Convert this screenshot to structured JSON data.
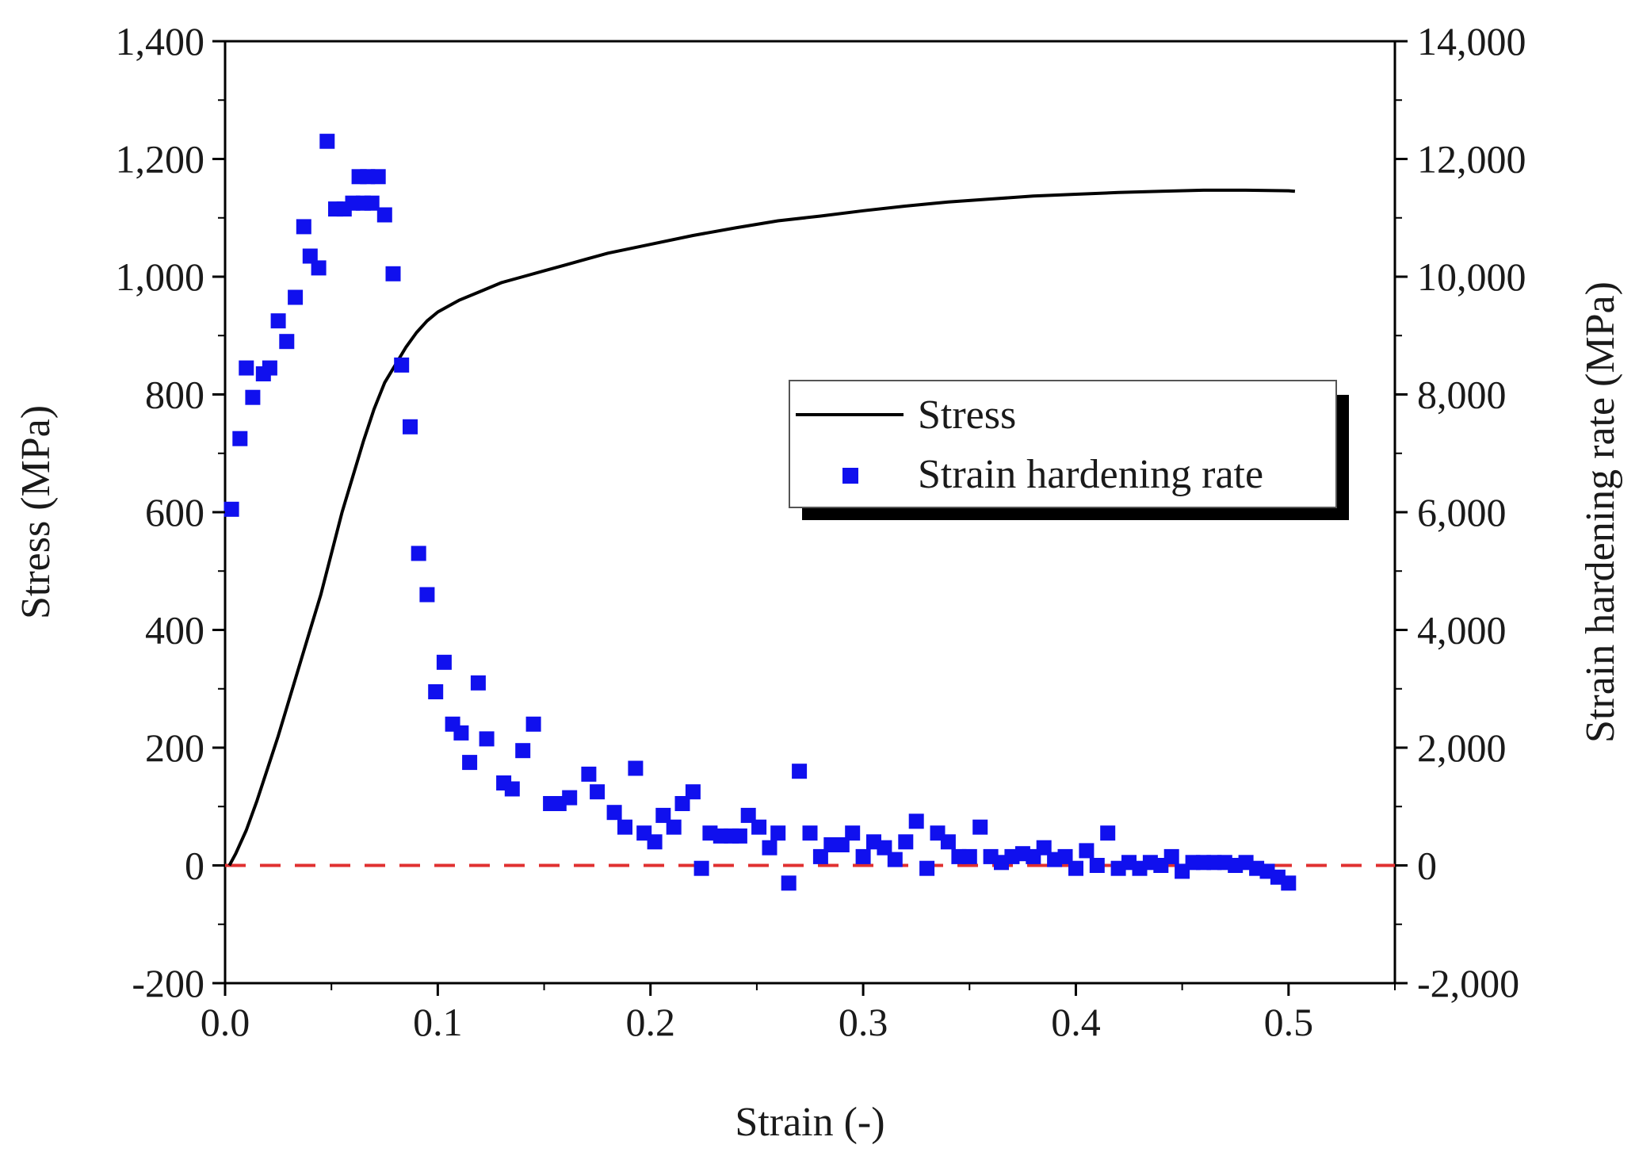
{
  "chart_data": {
    "type": "line",
    "title": "",
    "xlabel": "Strain (-)",
    "ylabel": "Stress (MPa)",
    "y2label": "Strain hardening rate (MPa)",
    "xlim": [
      0,
      0.55
    ],
    "ylim": [
      -200,
      1400
    ],
    "y2lim": [
      -2000,
      14000
    ],
    "grid": false,
    "legend_position": "center-right",
    "x_ticks": [
      "0.0",
      "0.1",
      "0.2",
      "0.3",
      "0.4",
      "0.5"
    ],
    "x_tick_values": [
      0,
      0.1,
      0.2,
      0.3,
      0.4,
      0.5
    ],
    "y_ticks": [
      "-200",
      "0",
      "200",
      "400",
      "600",
      "800",
      "1,000",
      "1,200",
      "1,400"
    ],
    "y_tick_values": [
      -200,
      0,
      200,
      400,
      600,
      800,
      1000,
      1200,
      1400
    ],
    "y2_ticks": [
      "-2,000",
      "0",
      "2,000",
      "4,000",
      "6,000",
      "8,000",
      "10,000",
      "12,000",
      "14,000"
    ],
    "y2_tick_values": [
      -2000,
      0,
      2000,
      4000,
      6000,
      8000,
      10000,
      12000,
      14000
    ],
    "reference_line": {
      "axis": "y",
      "value": 0,
      "style": "dashed",
      "color": "#e03030"
    },
    "series": [
      {
        "name": "Stress",
        "kind": "line",
        "axis": "left",
        "color": "#000000",
        "points": [
          [
            0.002,
            0
          ],
          [
            0.005,
            20
          ],
          [
            0.01,
            60
          ],
          [
            0.015,
            110
          ],
          [
            0.02,
            165
          ],
          [
            0.025,
            220
          ],
          [
            0.03,
            280
          ],
          [
            0.035,
            340
          ],
          [
            0.04,
            400
          ],
          [
            0.045,
            460
          ],
          [
            0.05,
            530
          ],
          [
            0.055,
            600
          ],
          [
            0.06,
            660
          ],
          [
            0.065,
            720
          ],
          [
            0.07,
            775
          ],
          [
            0.075,
            820
          ],
          [
            0.08,
            850
          ],
          [
            0.085,
            880
          ],
          [
            0.09,
            905
          ],
          [
            0.095,
            925
          ],
          [
            0.1,
            940
          ],
          [
            0.11,
            960
          ],
          [
            0.12,
            975
          ],
          [
            0.13,
            990
          ],
          [
            0.14,
            1000
          ],
          [
            0.15,
            1010
          ],
          [
            0.16,
            1020
          ],
          [
            0.17,
            1030
          ],
          [
            0.18,
            1040
          ],
          [
            0.2,
            1055
          ],
          [
            0.22,
            1070
          ],
          [
            0.24,
            1083
          ],
          [
            0.26,
            1095
          ],
          [
            0.28,
            1103
          ],
          [
            0.3,
            1112
          ],
          [
            0.32,
            1120
          ],
          [
            0.34,
            1127
          ],
          [
            0.36,
            1132
          ],
          [
            0.38,
            1137
          ],
          [
            0.4,
            1140
          ],
          [
            0.42,
            1143
          ],
          [
            0.44,
            1145
          ],
          [
            0.46,
            1147
          ],
          [
            0.48,
            1147
          ],
          [
            0.5,
            1146
          ],
          [
            0.503,
            1145
          ]
        ]
      },
      {
        "name": "Strain hardening rate",
        "kind": "scatter",
        "axis": "right",
        "color": "#1010ee",
        "points": [
          [
            0.003,
            6050
          ],
          [
            0.007,
            7250
          ],
          [
            0.01,
            8450
          ],
          [
            0.013,
            7950
          ],
          [
            0.018,
            8350
          ],
          [
            0.021,
            8450
          ],
          [
            0.025,
            9250
          ],
          [
            0.029,
            8900
          ],
          [
            0.033,
            9650
          ],
          [
            0.037,
            10850
          ],
          [
            0.04,
            10350
          ],
          [
            0.044,
            10150
          ],
          [
            0.048,
            12300
          ],
          [
            0.052,
            11150
          ],
          [
            0.056,
            11150
          ],
          [
            0.06,
            11250
          ],
          [
            0.063,
            11700
          ],
          [
            0.065,
            11250
          ],
          [
            0.067,
            11700
          ],
          [
            0.069,
            11250
          ],
          [
            0.072,
            11700
          ],
          [
            0.075,
            11050
          ],
          [
            0.079,
            10050
          ],
          [
            0.083,
            8500
          ],
          [
            0.087,
            7450
          ],
          [
            0.091,
            5300
          ],
          [
            0.095,
            4600
          ],
          [
            0.099,
            2950
          ],
          [
            0.103,
            3450
          ],
          [
            0.107,
            2400
          ],
          [
            0.111,
            2250
          ],
          [
            0.115,
            1750
          ],
          [
            0.119,
            3100
          ],
          [
            0.123,
            2150
          ],
          [
            0.131,
            1400
          ],
          [
            0.135,
            1300
          ],
          [
            0.14,
            1950
          ],
          [
            0.145,
            2400
          ],
          [
            0.153,
            1050
          ],
          [
            0.157,
            1050
          ],
          [
            0.162,
            1150
          ],
          [
            0.171,
            1550
          ],
          [
            0.175,
            1250
          ],
          [
            0.183,
            900
          ],
          [
            0.188,
            650
          ],
          [
            0.193,
            1650
          ],
          [
            0.197,
            550
          ],
          [
            0.202,
            400
          ],
          [
            0.206,
            850
          ],
          [
            0.211,
            650
          ],
          [
            0.215,
            1050
          ],
          [
            0.22,
            1250
          ],
          [
            0.224,
            -50
          ],
          [
            0.228,
            550
          ],
          [
            0.233,
            500
          ],
          [
            0.238,
            500
          ],
          [
            0.242,
            500
          ],
          [
            0.246,
            850
          ],
          [
            0.251,
            650
          ],
          [
            0.256,
            300
          ],
          [
            0.26,
            550
          ],
          [
            0.265,
            -300
          ],
          [
            0.27,
            1600
          ],
          [
            0.275,
            550
          ],
          [
            0.28,
            150
          ],
          [
            0.285,
            350
          ],
          [
            0.29,
            350
          ],
          [
            0.295,
            550
          ],
          [
            0.3,
            150
          ],
          [
            0.305,
            400
          ],
          [
            0.31,
            300
          ],
          [
            0.315,
            100
          ],
          [
            0.32,
            400
          ],
          [
            0.325,
            750
          ],
          [
            0.33,
            -50
          ],
          [
            0.335,
            550
          ],
          [
            0.34,
            400
          ],
          [
            0.345,
            150
          ],
          [
            0.35,
            150
          ],
          [
            0.355,
            650
          ],
          [
            0.36,
            150
          ],
          [
            0.365,
            50
          ],
          [
            0.37,
            150
          ],
          [
            0.375,
            200
          ],
          [
            0.38,
            150
          ],
          [
            0.385,
            300
          ],
          [
            0.39,
            100
          ],
          [
            0.395,
            150
          ],
          [
            0.4,
            -50
          ],
          [
            0.405,
            250
          ],
          [
            0.41,
            0
          ],
          [
            0.415,
            550
          ],
          [
            0.42,
            -50
          ],
          [
            0.425,
            50
          ],
          [
            0.43,
            -50
          ],
          [
            0.435,
            50
          ],
          [
            0.44,
            0
          ],
          [
            0.445,
            150
          ],
          [
            0.45,
            -100
          ],
          [
            0.455,
            50
          ],
          [
            0.46,
            50
          ],
          [
            0.465,
            50
          ],
          [
            0.47,
            50
          ],
          [
            0.475,
            0
          ],
          [
            0.48,
            50
          ],
          [
            0.485,
            -50
          ],
          [
            0.49,
            -100
          ],
          [
            0.495,
            -200
          ],
          [
            0.5,
            -300
          ]
        ]
      }
    ]
  }
}
